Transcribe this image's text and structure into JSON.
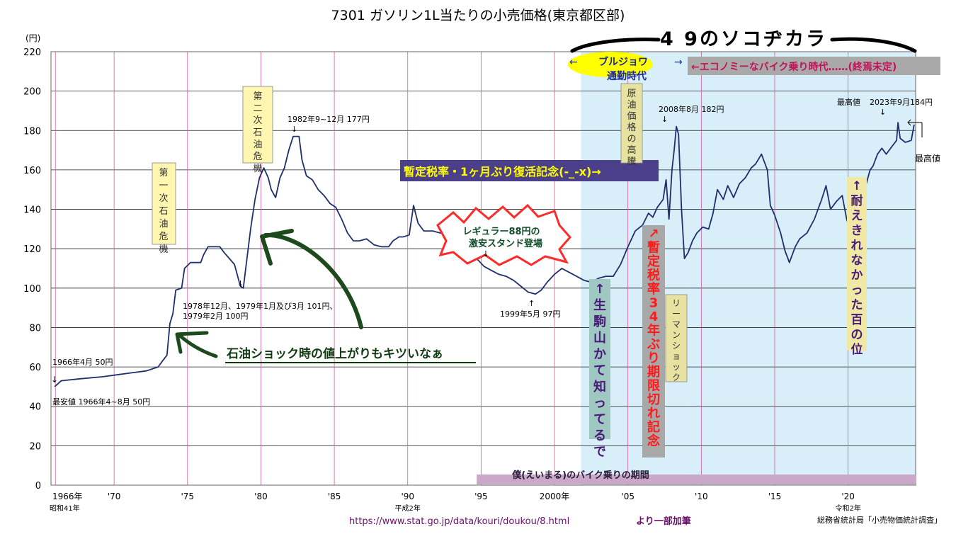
{
  "chart_data": {
    "type": "line",
    "title": "7301 ガソリン1L当たりの小売価格(東京都区部)",
    "y_unit": "(円)",
    "ylim": [
      0,
      220
    ],
    "y_ticks": [
      0,
      20,
      40,
      60,
      80,
      100,
      120,
      140,
      160,
      180,
      200,
      220
    ],
    "xlim": [
      1966.0,
      2024.9
    ],
    "x_ticks": [
      {
        "year": 1966,
        "label": "1966年",
        "sub": "昭和41年"
      },
      {
        "year": 1970,
        "label": "'70",
        "sub": ""
      },
      {
        "year": 1975,
        "label": "'75",
        "sub": ""
      },
      {
        "year": 1980,
        "label": "'80",
        "sub": ""
      },
      {
        "year": 1985,
        "label": "'85",
        "sub": ""
      },
      {
        "year": 1990,
        "label": "'90",
        "sub": "平成2年"
      },
      {
        "year": 1995,
        "label": "'95",
        "sub": ""
      },
      {
        "year": 2000,
        "label": "2000年",
        "sub": ""
      },
      {
        "year": 2005,
        "label": "'05",
        "sub": ""
      },
      {
        "year": 2010,
        "label": "'10",
        "sub": ""
      },
      {
        "year": 2015,
        "label": "'15",
        "sub": ""
      },
      {
        "year": 2020,
        "label": "'20",
        "sub": "令和2年"
      }
    ],
    "grid": true,
    "series": [
      {
        "color": "#1f2f6e",
        "points": [
          [
            1966.25,
            50
          ],
          [
            1966.7,
            53
          ],
          [
            1968.0,
            54
          ],
          [
            1969.5,
            55
          ],
          [
            1970.5,
            56
          ],
          [
            1971.5,
            57
          ],
          [
            1972.5,
            58
          ],
          [
            1973.3,
            60
          ],
          [
            1973.6,
            63
          ],
          [
            1973.9,
            66
          ],
          [
            1974.1,
            82
          ],
          [
            1974.3,
            87
          ],
          [
            1974.5,
            99
          ],
          [
            1974.9,
            100
          ],
          [
            1975.1,
            110
          ],
          [
            1975.5,
            113
          ],
          [
            1976.2,
            113
          ],
          [
            1976.4,
            117
          ],
          [
            1976.7,
            121
          ],
          [
            1977.5,
            121
          ],
          [
            1977.8,
            118
          ],
          [
            1978.5,
            112
          ],
          [
            1978.9,
            101
          ],
          [
            1979.1,
            100
          ],
          [
            1979.3,
            112
          ],
          [
            1979.6,
            130
          ],
          [
            1979.9,
            145
          ],
          [
            1980.2,
            156
          ],
          [
            1980.5,
            161
          ],
          [
            1980.8,
            156
          ],
          [
            1981.0,
            150
          ],
          [
            1981.3,
            146
          ],
          [
            1981.6,
            156
          ],
          [
            1981.9,
            161
          ],
          [
            1982.2,
            170
          ],
          [
            1982.5,
            177
          ],
          [
            1982.9,
            177
          ],
          [
            1983.1,
            165
          ],
          [
            1983.4,
            157
          ],
          [
            1983.8,
            155
          ],
          [
            1984.2,
            150
          ],
          [
            1984.6,
            147
          ],
          [
            1985.0,
            143
          ],
          [
            1985.4,
            141
          ],
          [
            1985.8,
            135
          ],
          [
            1986.2,
            128
          ],
          [
            1986.6,
            124
          ],
          [
            1987.0,
            124
          ],
          [
            1987.5,
            125
          ],
          [
            1988.0,
            122
          ],
          [
            1988.5,
            121
          ],
          [
            1989.0,
            121
          ],
          [
            1989.3,
            124
          ],
          [
            1989.7,
            126
          ],
          [
            1990.0,
            126
          ],
          [
            1990.4,
            127
          ],
          [
            1990.7,
            142
          ],
          [
            1991.0,
            133
          ],
          [
            1991.4,
            129
          ],
          [
            1992.0,
            129
          ],
          [
            1992.5,
            128
          ],
          [
            1993.0,
            127
          ],
          [
            1993.5,
            125
          ],
          [
            1994.0,
            123
          ],
          [
            1994.5,
            119
          ],
          [
            1995.0,
            115
          ],
          [
            1995.5,
            111
          ],
          [
            1996.0,
            109
          ],
          [
            1996.5,
            107
          ],
          [
            1997.0,
            106
          ],
          [
            1997.5,
            104
          ],
          [
            1998.0,
            101
          ],
          [
            1998.5,
            98
          ],
          [
            1999.0,
            97
          ],
          [
            1999.4,
            99
          ],
          [
            1999.8,
            103
          ],
          [
            2000.3,
            107
          ],
          [
            2000.8,
            110
          ],
          [
            2001.3,
            108
          ],
          [
            2001.8,
            106
          ],
          [
            2002.3,
            104
          ],
          [
            2002.8,
            103
          ],
          [
            2003.3,
            105
          ],
          [
            2003.8,
            106
          ],
          [
            2004.3,
            106
          ],
          [
            2004.8,
            112
          ],
          [
            2005.3,
            121
          ],
          [
            2005.8,
            129
          ],
          [
            2006.3,
            132
          ],
          [
            2006.7,
            138
          ],
          [
            2007.0,
            136
          ],
          [
            2007.3,
            141
          ],
          [
            2007.7,
            145
          ],
          [
            2007.9,
            155
          ],
          [
            2008.1,
            135
          ],
          [
            2008.3,
            160
          ],
          [
            2008.45,
            170
          ],
          [
            2008.6,
            182
          ],
          [
            2008.75,
            178
          ],
          [
            2008.95,
            140
          ],
          [
            2009.15,
            115
          ],
          [
            2009.4,
            118
          ],
          [
            2009.7,
            124
          ],
          [
            2010.0,
            128
          ],
          [
            2010.4,
            131
          ],
          [
            2010.8,
            130
          ],
          [
            2011.1,
            138
          ],
          [
            2011.4,
            150
          ],
          [
            2011.8,
            145
          ],
          [
            2012.1,
            152
          ],
          [
            2012.5,
            146
          ],
          [
            2012.9,
            153
          ],
          [
            2013.3,
            156
          ],
          [
            2013.7,
            161
          ],
          [
            2014.0,
            163
          ],
          [
            2014.4,
            168
          ],
          [
            2014.8,
            160
          ],
          [
            2015.0,
            142
          ],
          [
            2015.3,
            137
          ],
          [
            2015.7,
            128
          ],
          [
            2016.0,
            119
          ],
          [
            2016.3,
            113
          ],
          [
            2016.7,
            121
          ],
          [
            2017.0,
            125
          ],
          [
            2017.5,
            128
          ],
          [
            2018.0,
            135
          ],
          [
            2018.5,
            145
          ],
          [
            2018.8,
            152
          ],
          [
            2019.1,
            140
          ],
          [
            2019.5,
            144
          ],
          [
            2019.9,
            147
          ],
          [
            2020.2,
            135
          ],
          [
            2020.5,
            128
          ],
          [
            2020.9,
            133
          ],
          [
            2021.2,
            141
          ],
          [
            2021.5,
            152
          ],
          [
            2021.8,
            160
          ],
          [
            2022.0,
            162
          ],
          [
            2022.3,
            168
          ],
          [
            2022.6,
            171
          ],
          [
            2022.9,
            168
          ],
          [
            2023.3,
            172
          ],
          [
            2023.6,
            175
          ],
          [
            2023.7,
            184
          ],
          [
            2023.85,
            176
          ],
          [
            2024.2,
            174
          ],
          [
            2024.6,
            175
          ],
          [
            2024.8,
            183
          ]
        ]
      }
    ],
    "shaded_periods": [
      {
        "from": 2002.1,
        "to": 2009.6,
        "color": "#d8eef9"
      },
      {
        "from": 2009.6,
        "to": 2024.9,
        "color": "#d8eef9"
      }
    ],
    "bottom_band": {
      "from": 1995.0,
      "to": 2024.9,
      "text": "僕(えいまる)のバイク乗りの期間",
      "color": "#c9a8c8"
    },
    "annotations": [
      {
        "id": "low-1966",
        "lines": [
          "1966年4月 50円"
        ]
      },
      {
        "id": "low-min",
        "lines": [
          "最安値 1966年4~8月 50円"
        ]
      },
      {
        "id": "crisis-1",
        "lines": [
          "第一次石油危機"
        ]
      },
      {
        "id": "crisis-2",
        "lines": [
          "第二次石油危機"
        ]
      },
      {
        "id": "peak-1982",
        "lines": [
          "1982年9~12月 177円"
        ]
      },
      {
        "id": "dip-1979",
        "lines": [
          "1978年12月、1979年1月及び3月 101円、",
          "1979年2月 100円"
        ]
      },
      {
        "id": "low-1999",
        "lines": [
          "1999年5月 97円"
        ]
      },
      {
        "id": "peak-2008",
        "lines": [
          "2008年8月 182円"
        ]
      },
      {
        "id": "surge",
        "lines": [
          "原油価格の高騰"
        ]
      },
      {
        "id": "lehman",
        "lines": [
          "リーマンショック"
        ]
      },
      {
        "id": "peak-2023",
        "lines": [
          "最高値",
          "2023年9月184円"
        ]
      },
      {
        "id": "max-right",
        "lines": [
          "最高値"
        ]
      }
    ],
    "callouts": {
      "soko": "4 9のソコヂカラ",
      "bourgeois": "ブルジョワ",
      "commute": "通勤時代",
      "economy": "←エコノミーなバイク乗り時代……(終焉未定)",
      "provisional_tax": "暫定税率・1ヶ月ぶり復活記念(-_-x)→",
      "regular": "レギュラー88円の",
      "cheap_stand": "激安スタンド登場",
      "oil_shock": "石油ショック時の値上がりもキツいなぁ",
      "ikoma": "↑生駒山かて知ってるで",
      "tax_expiry": "↗暫定税率34年ぶり期限切れ記念",
      "taeki": "↑耐えきれなかった百の位"
    },
    "source_url": "https://www.stat.go.jp/data/kouri/doukou/8.html",
    "source_suffix": "より一部加筆",
    "credit": "総務省統計局「小売物価統計調査」"
  }
}
